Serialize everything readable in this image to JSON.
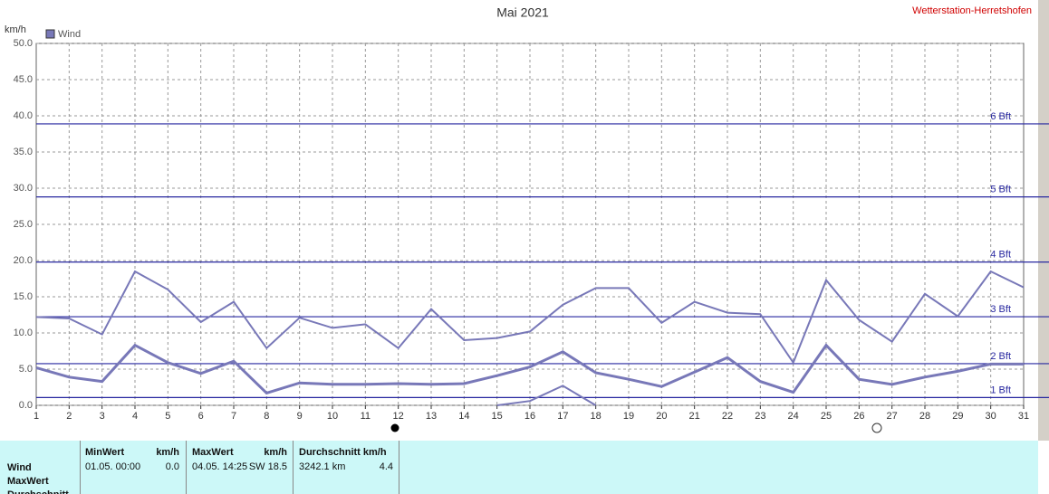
{
  "chart_data": {
    "type": "line",
    "title": "Mai 2021",
    "annotation": "Wetterstation-Herretshofen",
    "y_label": "km/h",
    "categories": [
      "1",
      "2",
      "3",
      "4",
      "5",
      "6",
      "7",
      "8",
      "9",
      "10",
      "11",
      "12",
      "13",
      "14",
      "15",
      "16",
      "17",
      "18",
      "19",
      "20",
      "21",
      "22",
      "23",
      "24",
      "25",
      "26",
      "27",
      "28",
      "29",
      "30",
      "31"
    ],
    "series": [
      {
        "name": "Wind",
        "color": "#7878b8",
        "values": [
          12.2,
          12.0,
          9.8,
          18.5,
          16.0,
          11.5,
          14.3,
          7.9,
          12.1,
          10.7,
          11.2,
          7.9,
          13.3,
          9.0,
          9.3,
          10.2,
          13.9,
          16.2,
          16.2,
          11.4,
          14.3,
          12.8,
          12.6,
          5.9,
          17.3,
          11.8,
          8.8,
          15.4,
          12.3,
          18.5,
          16.3
        ]
      },
      {
        "color": "#7878b8",
        "values": [
          5.2,
          3.9,
          3.3,
          8.3,
          5.9,
          4.4,
          6.1,
          1.7,
          3.1,
          2.9,
          2.9,
          3.0,
          2.9,
          3.0,
          4.1,
          5.3,
          7.4,
          4.5,
          3.6,
          2.6,
          4.6,
          6.6,
          3.3,
          1.8,
          8.3,
          3.6,
          2.9,
          3.9,
          4.7,
          5.7,
          5.7
        ]
      },
      {
        "color": "#7878b8",
        "values": [
          null,
          null,
          null,
          null,
          null,
          null,
          null,
          null,
          null,
          null,
          null,
          null,
          null,
          null,
          0,
          0.6,
          2.7,
          0,
          null,
          null,
          null,
          null,
          null,
          null,
          null,
          null,
          null,
          null,
          null,
          null,
          null
        ]
      }
    ],
    "reference_lines": [
      {
        "value": 1.08,
        "label": "1 Bft"
      },
      {
        "value": 5.76,
        "label": "2 Bft"
      },
      {
        "value": 12.24,
        "label": "3 Bft"
      },
      {
        "value": 19.8,
        "label": "4 Bft"
      },
      {
        "value": 28.8,
        "label": "5 Bft"
      },
      {
        "value": 38.88,
        "label": "6 Bft"
      }
    ],
    "reference_color": "#2828a0",
    "ylim": [
      0,
      50
    ],
    "yticks": [
      {
        "value": 0,
        "label": "0.0"
      },
      {
        "value": 5,
        "label": "5.0"
      },
      {
        "value": 10,
        "label": "10.0"
      },
      {
        "value": 15,
        "label": "15.0"
      },
      {
        "value": 20,
        "label": "20.0"
      },
      {
        "value": 25,
        "label": "25.0"
      },
      {
        "value": 30,
        "label": "30.0"
      },
      {
        "value": 35,
        "label": "35.0"
      },
      {
        "value": 40,
        "label": "40.0"
      },
      {
        "value": 45,
        "label": "45.0"
      },
      {
        "value": 50,
        "label": "50.0"
      }
    ],
    "grid": true
  },
  "table": {
    "row_labels": [
      "Wind",
      "MaxWert",
      "Durchschnitt"
    ],
    "headers": [
      "MinWert",
      "km/h",
      "MaxWert",
      "km/h",
      "Durchschnitt km/h"
    ],
    "rows": [
      [
        "01.05.  00:00",
        "0.0",
        "04.05.  14:25",
        "SW 18.5",
        "3242.1 km",
        "4.4"
      ]
    ]
  }
}
